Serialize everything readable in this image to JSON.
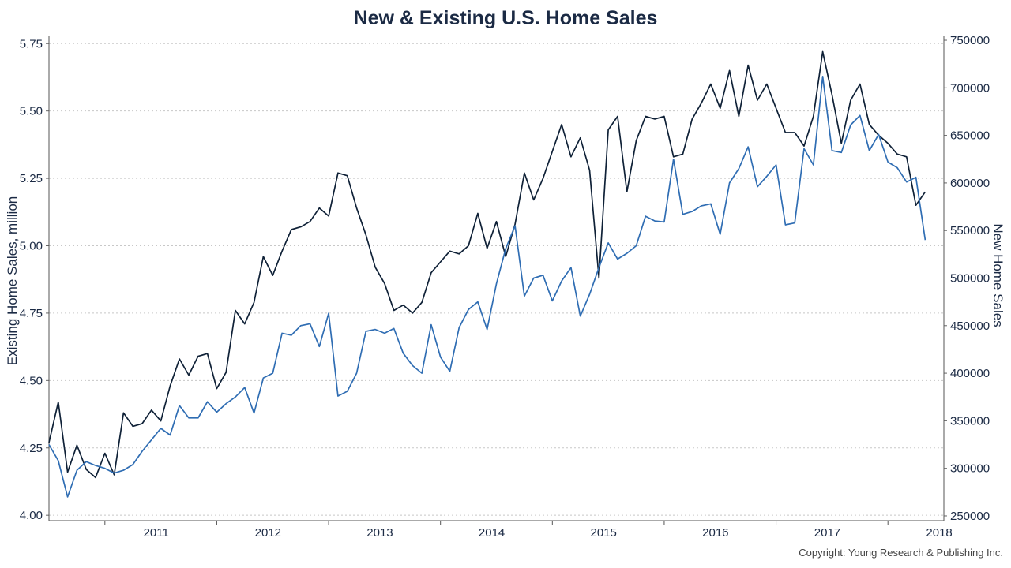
{
  "chart_data": {
    "type": "line",
    "title": "New & Existing U.S. Home Sales",
    "credit": "Copyright: Young Research & Publishing Inc.",
    "x_tick_labels": [
      "2011",
      "2012",
      "2013",
      "2014",
      "2015",
      "2016",
      "2017",
      "2018"
    ],
    "x_range": [
      "2010-07",
      "2018-07"
    ],
    "grid": "horizontal dotted",
    "legend": "none",
    "left_axis": {
      "label": "Existing Home Sales, million",
      "range": [
        3.98,
        5.78
      ],
      "ticks": [
        "4.00",
        "4.25",
        "4.50",
        "4.75",
        "5.00",
        "5.25",
        "5.50",
        "5.75"
      ]
    },
    "right_axis": {
      "label": "New Home Sales",
      "range": [
        245000,
        755000
      ],
      "ticks": [
        "250000",
        "300000",
        "350000",
        "400000",
        "450000",
        "500000",
        "550000",
        "600000",
        "650000",
        "700000",
        "750000"
      ]
    },
    "series": [
      {
        "axis": "left",
        "color": "#0f2137",
        "start": "2010-07",
        "values": [
          4.27,
          4.42,
          4.16,
          4.26,
          4.17,
          4.14,
          4.23,
          4.15,
          4.38,
          4.33,
          4.34,
          4.39,
          4.35,
          4.48,
          4.58,
          4.52,
          4.59,
          4.6,
          4.47,
          4.53,
          4.76,
          4.71,
          4.79,
          4.96,
          4.89,
          4.98,
          5.06,
          5.07,
          5.09,
          5.14,
          5.11,
          5.27,
          5.26,
          5.14,
          5.04,
          4.92,
          4.86,
          4.76,
          4.78,
          4.75,
          4.79,
          4.9,
          4.94,
          4.98,
          4.97,
          5.0,
          5.12,
          4.99,
          5.09,
          4.96,
          5.08,
          5.27,
          5.17,
          5.25,
          5.35,
          5.45,
          5.33,
          5.4,
          5.28,
          4.88,
          5.43,
          5.48,
          5.2,
          5.39,
          5.48,
          5.47,
          5.48,
          5.33,
          5.34,
          5.47,
          5.53,
          5.6,
          5.51,
          5.65,
          5.48,
          5.67,
          5.54,
          5.6,
          5.51,
          5.42,
          5.42,
          5.37,
          5.48,
          5.72,
          5.56,
          5.38,
          5.54,
          5.6,
          5.45,
          5.41,
          5.38,
          5.34,
          5.33,
          5.15,
          5.2
        ]
      },
      {
        "axis": "right",
        "color": "#2f6db3",
        "start": "2010-07",
        "values": [
          325000,
          308000,
          270000,
          298000,
          307000,
          303000,
          300000,
          295000,
          298000,
          304000,
          318000,
          330000,
          342000,
          335000,
          366000,
          353000,
          353000,
          370000,
          359000,
          368000,
          375000,
          385000,
          358000,
          395000,
          400000,
          442000,
          440000,
          450000,
          452000,
          428000,
          463000,
          376000,
          381000,
          400000,
          444000,
          446000,
          442000,
          447000,
          421000,
          408000,
          400000,
          451000,
          417000,
          402000,
          448000,
          467000,
          475000,
          446000,
          494000,
          531000,
          555000,
          481000,
          500000,
          503000,
          476000,
          497000,
          511000,
          460000,
          483000,
          511000,
          537000,
          520000,
          526000,
          534000,
          565000,
          560000,
          559000,
          625000,
          567000,
          570000,
          576000,
          578000,
          546000,
          600000,
          615000,
          638000,
          596000,
          607000,
          619000,
          556000,
          558000,
          636000,
          619000,
          712000,
          634000,
          632000,
          661000,
          671000,
          634000,
          651000,
          622000,
          616000,
          601000,
          606000,
          540000
        ]
      }
    ]
  }
}
